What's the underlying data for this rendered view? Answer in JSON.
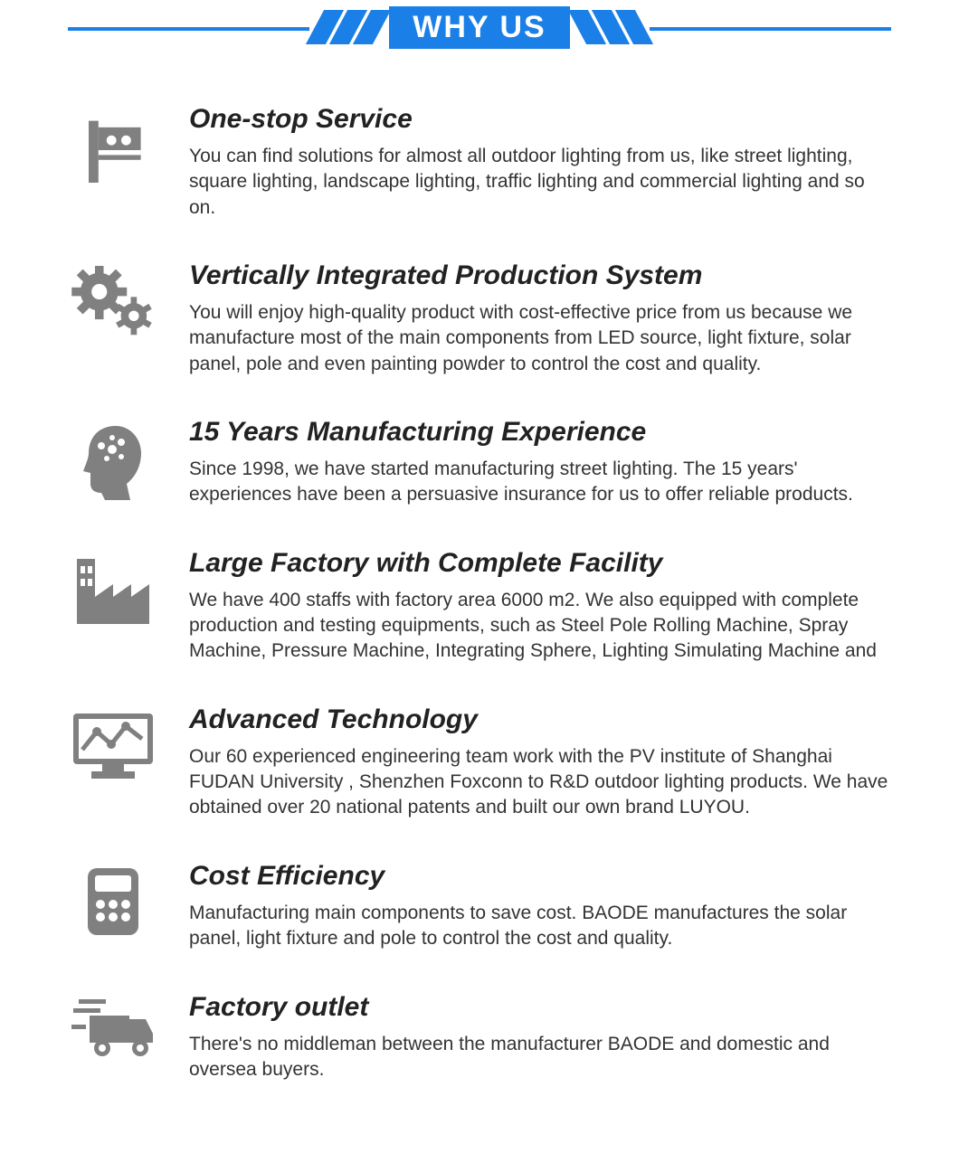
{
  "colors": {
    "accent": "#1a7fe6",
    "icon": "#808080",
    "title": "#222222",
    "body": "#333333",
    "bg": "#ffffff"
  },
  "header": {
    "title": "WHY US"
  },
  "features": [
    {
      "icon": "billboard",
      "title": "One-stop Service",
      "desc": "You can find solutions for almost all outdoor lighting from us, like street lighting, square lighting, landscape lighting, traffic lighting and commercial lighting and so on."
    },
    {
      "icon": "gears",
      "title": "Vertically Integrated Production System",
      "desc": "You will enjoy high-quality product with cost-effective price from us because we manufacture most of the main components from LED source, light fixture, solar panel, pole and even painting powder to control the cost and quality."
    },
    {
      "icon": "head-gears",
      "title": "15 Years Manufacturing Experience",
      "desc": "Since 1998, we have started manufacturing street lighting. The 15 years' experiences have been a persuasive insurance for us to offer reliable products."
    },
    {
      "icon": "factory",
      "title": "Large Factory with Complete Facility",
      "desc": "We have 400 staffs with factory area 6000 m2. We also equipped with complete production and testing equipments, such as Steel Pole Rolling Machine, Spray Machine, Pressure Machine, Integrating Sphere, Lighting Simulating Machine and"
    },
    {
      "icon": "monitor-chart",
      "title": "Advanced Technology",
      "desc": "Our 60 experienced engineering team work with the PV institute of Shanghai FUDAN University , Shenzhen Foxconn to R&D outdoor lighting products. We have obtained over 20 national patents and built our own brand LUYOU."
    },
    {
      "icon": "calculator",
      "title": "Cost Efficiency",
      "desc": "Manufacturing main components to save cost. BAODE manufactures the solar panel, light fixture and pole to control the cost and quality."
    },
    {
      "icon": "truck",
      "title": "Factory outlet",
      "desc": "There's no middleman between the manufacturer BAODE and domestic and oversea buyers."
    }
  ]
}
